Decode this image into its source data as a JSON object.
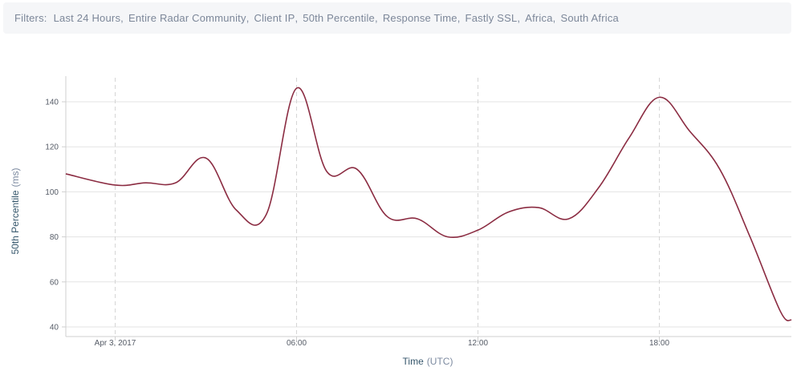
{
  "filters": {
    "label": "Filters:",
    "items": [
      "Last 24 Hours",
      "Entire Radar Community",
      "Client IP",
      "50th Percentile",
      "Response Time",
      "Fastly SSL",
      "Africa",
      "South Africa"
    ]
  },
  "colors": {
    "line": "#8b2c42",
    "grid": "#e3e3e3",
    "vgrid": "#d5d5d5",
    "axis": "#cfcfcf"
  },
  "chart_data": {
    "type": "line",
    "xlabel": "Time",
    "xlabel_unit": "(UTC)",
    "ylabel": "50th Percentile",
    "ylabel_unit": "(ms)",
    "ylim": [
      35,
      150
    ],
    "yticks": [
      40,
      60,
      80,
      100,
      120,
      140
    ],
    "xlim": [
      "2017-04-02 22:22",
      "2017-04-03 22:22"
    ],
    "xticks": [
      {
        "time": "2017-04-03 00:00",
        "label": "Apr 3, 2017"
      },
      {
        "time": "2017-04-03 06:00",
        "label": "06:00"
      },
      {
        "time": "2017-04-03 12:00",
        "label": "12:00"
      },
      {
        "time": "2017-04-03 18:00",
        "label": "18:00"
      }
    ],
    "grid": true,
    "legend": false,
    "series": [
      {
        "x": [
          "2017-04-02 22:22",
          "2017-04-03 00:00",
          "2017-04-03 01:00",
          "2017-04-03 02:00",
          "2017-04-03 03:00",
          "2017-04-03 04:00",
          "2017-04-03 05:00",
          "2017-04-03 06:00",
          "2017-04-03 07:00",
          "2017-04-03 08:00",
          "2017-04-03 09:00",
          "2017-04-03 10:00",
          "2017-04-03 11:00",
          "2017-04-03 12:00",
          "2017-04-03 13:00",
          "2017-04-03 14:00",
          "2017-04-03 15:00",
          "2017-04-03 16:00",
          "2017-04-03 17:00",
          "2017-04-03 18:00",
          "2017-04-03 19:00",
          "2017-04-03 20:00",
          "2017-04-03 21:00",
          "2017-04-03 22:00",
          "2017-04-03 22:22"
        ],
        "y": [
          108,
          103,
          104,
          104,
          115,
          92,
          90,
          146,
          109,
          110,
          89,
          88,
          80,
          83,
          91,
          93,
          88,
          102,
          124,
          142,
          127,
          110,
          80,
          47,
          43
        ]
      }
    ]
  }
}
